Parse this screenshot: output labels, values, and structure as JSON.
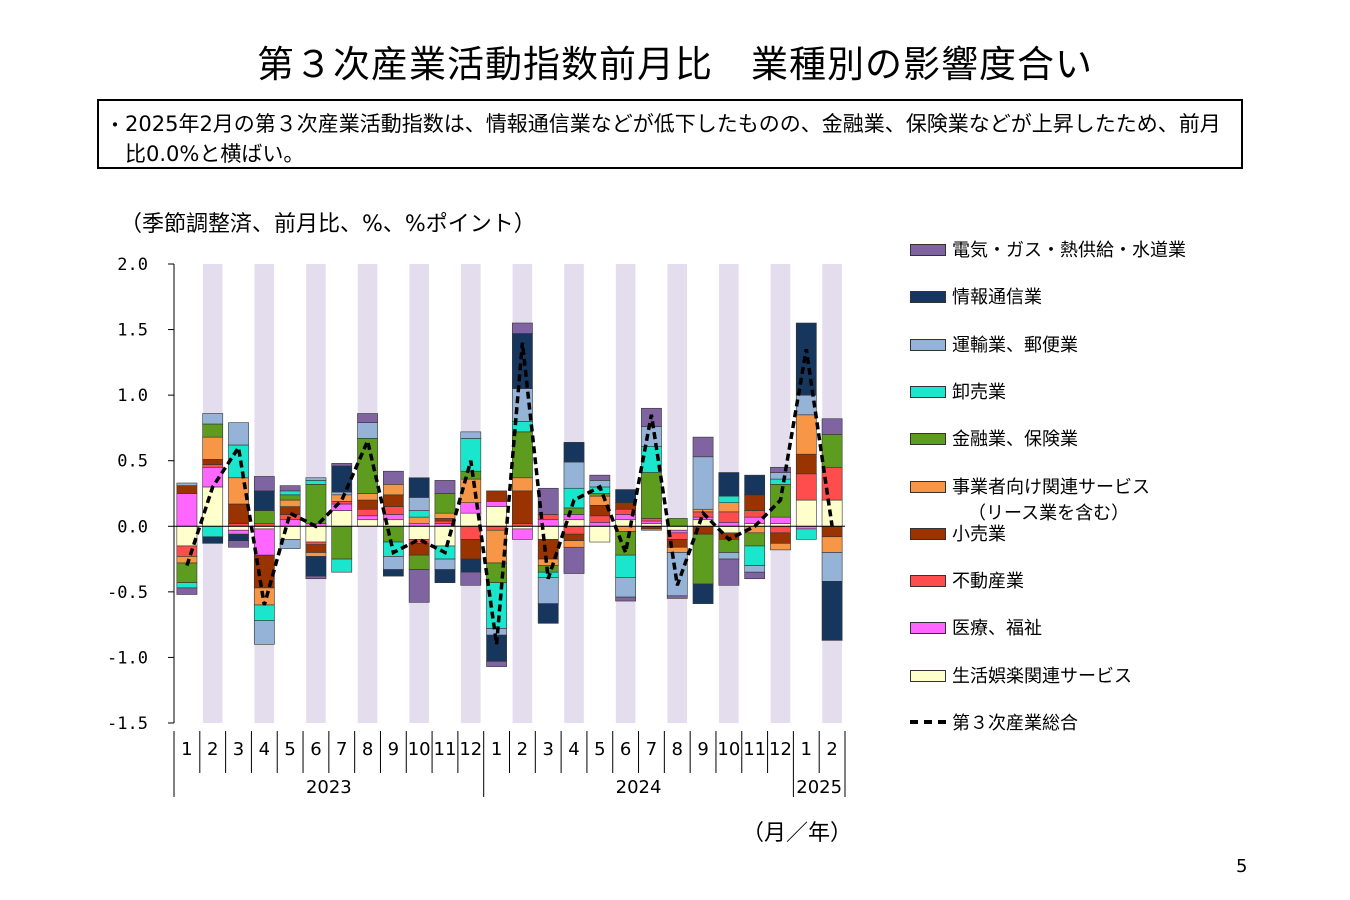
{
  "page": {
    "title": "第３次産業活動指数前月比　業種別の影響度合い",
    "summary_bullet": "・",
    "summary": "2025年2月の第３次産業活動指数は、情報通信業などが低下したものの、金融業、保険業などが上昇したため、前月比0.0%と横ばい。",
    "unit_note": "（季節調整済、前月比、%、%ポイント）",
    "x_unit": "（月／年）",
    "page_number": "5"
  },
  "chart_data": {
    "type": "bar",
    "stacked": true,
    "ylim": [
      -1.5,
      2.0
    ],
    "y_ticks": [
      "2.0",
      "1.5",
      "1.0",
      "0.5",
      "0.0",
      "-0.5",
      "-1.0",
      "-1.5"
    ],
    "y_tick_values": [
      2.0,
      1.5,
      1.0,
      0.5,
      0.0,
      -0.5,
      -1.0,
      -1.5
    ],
    "categories": [
      "1",
      "2",
      "3",
      "4",
      "5",
      "6",
      "7",
      "8",
      "9",
      "10",
      "11",
      "12",
      "1",
      "2",
      "3",
      "4",
      "5",
      "6",
      "7",
      "8",
      "9",
      "10",
      "11",
      "12",
      "1",
      "2"
    ],
    "year_labels": [
      {
        "label": "2023",
        "start": 0,
        "end": 11
      },
      {
        "label": "2024",
        "start": 12,
        "end": 23
      },
      {
        "label": "2025",
        "start": 24,
        "end": 25
      }
    ],
    "shaded_background": "even-months",
    "series": [
      {
        "name": "生活娯楽関連サービス",
        "color": "#ffffcc",
        "values": [
          -0.15,
          0.3,
          -0.03,
          -0.02,
          -0.1,
          -0.12,
          0.12,
          0.05,
          0.05,
          -0.1,
          -0.15,
          0.1,
          0.15,
          -0.02,
          -0.1,
          0.05,
          -0.12,
          0.05,
          0.02,
          -0.03,
          0.05,
          -0.05,
          0.02,
          0.02,
          0.2,
          0.2
        ]
      },
      {
        "name": "医療、福祉",
        "color": "#ff66ff",
        "values": [
          0.25,
          0.15,
          -0.03,
          -0.2,
          0.05,
          0.02,
          0.05,
          0.03,
          0.04,
          0.02,
          0.02,
          0.08,
          0.04,
          -0.08,
          0.05,
          0.04,
          0.03,
          0.04,
          0.02,
          -0.02,
          0.02,
          0.03,
          0.05,
          0.05,
          -0.02,
          0.0
        ]
      },
      {
        "name": "不動産業",
        "color": "#ff4d4d",
        "values": [
          -0.08,
          0.02,
          0.02,
          0.02,
          0.04,
          -0.02,
          0.02,
          0.05,
          0.06,
          -0.03,
          0.02,
          -0.1,
          -0.03,
          0.02,
          0.04,
          -0.06,
          0.05,
          0.04,
          0.02,
          -0.05,
          0.04,
          0.08,
          0.05,
          -0.05,
          0.2,
          0.25
        ]
      },
      {
        "name": "小売業",
        "color": "#993300",
        "values": [
          0.06,
          0.04,
          0.15,
          -0.25,
          0.06,
          -0.06,
          0.0,
          0.07,
          0.09,
          -0.09,
          0.02,
          -0.15,
          0.08,
          0.25,
          -0.15,
          -0.05,
          0.08,
          0.05,
          -0.02,
          -0.06,
          -0.06,
          -0.05,
          0.12,
          -0.08,
          0.15,
          -0.08
        ]
      },
      {
        "name": "事業者向け関連サービス（リース業を含む）",
        "color": "#f79646",
        "values": [
          -0.05,
          0.17,
          0.2,
          -0.13,
          0.05,
          -0.03,
          0.05,
          0.05,
          0.08,
          0.05,
          0.04,
          0.18,
          -0.25,
          0.1,
          -0.05,
          -0.05,
          0.07,
          -0.04,
          -0.01,
          -0.04,
          0.02,
          0.07,
          -0.05,
          -0.05,
          0.3,
          -0.12
        ]
      },
      {
        "name": "金融業、保険業",
        "color": "#5e9c1f",
        "values": [
          -0.15,
          0.1,
          0.0,
          0.1,
          0.04,
          0.3,
          -0.25,
          0.42,
          -0.12,
          -0.11,
          0.15,
          0.06,
          -0.15,
          0.35,
          -0.05,
          0.05,
          0.02,
          -0.18,
          0.35,
          0.06,
          -0.38,
          -0.1,
          -0.1,
          0.25,
          0.0,
          0.25
        ]
      },
      {
        "name": "卸売業",
        "color": "#19e6cc",
        "values": [
          -0.04,
          -0.08,
          0.25,
          -0.12,
          0.03,
          0.03,
          -0.1,
          0.0,
          -0.11,
          0.05,
          -0.1,
          0.25,
          -0.35,
          0.08,
          -0.04,
          0.15,
          0.05,
          -0.17,
          0.2,
          0.0,
          0.0,
          0.05,
          -0.15,
          0.04,
          -0.08,
          0.0
        ]
      },
      {
        "name": "運輸業、郵便業",
        "color": "#95b3d7",
        "values": [
          0.02,
          0.08,
          0.17,
          -0.18,
          -0.07,
          0.02,
          0.02,
          0.12,
          -0.1,
          0.1,
          -0.08,
          0.05,
          -0.05,
          0.25,
          -0.2,
          0.2,
          0.05,
          -0.15,
          0.15,
          -0.33,
          0.4,
          -0.05,
          -0.05,
          0.05,
          0.15,
          -0.22
        ]
      },
      {
        "name": "情報通信業",
        "color": "#17365d",
        "values": [
          0.0,
          -0.05,
          -0.05,
          0.15,
          0.0,
          -0.15,
          0.2,
          0.0,
          -0.05,
          0.15,
          -0.1,
          -0.1,
          -0.2,
          0.42,
          -0.15,
          0.15,
          0.0,
          0.1,
          0.0,
          0.0,
          -0.15,
          0.18,
          0.15,
          0.0,
          0.55,
          -0.45
        ]
      },
      {
        "name": "電気・ガス・熱供給・水道業",
        "color": "#8064a2",
        "values": [
          -0.05,
          0.0,
          -0.05,
          0.11,
          0.04,
          -0.02,
          0.02,
          0.07,
          0.1,
          -0.25,
          0.1,
          -0.1,
          -0.04,
          0.08,
          0.2,
          -0.2,
          0.04,
          -0.03,
          0.14,
          -0.02,
          0.15,
          -0.2,
          -0.05,
          0.04,
          0.0,
          0.12
        ]
      }
    ],
    "line": {
      "name": "第３次産業総合",
      "color": "#000000",
      "values": [
        -0.3,
        0.3,
        0.6,
        -0.6,
        0.1,
        0.0,
        0.2,
        0.65,
        -0.2,
        -0.1,
        -0.2,
        0.5,
        -0.9,
        1.4,
        -0.4,
        0.2,
        0.3,
        -0.2,
        0.85,
        -0.45,
        0.1,
        -0.1,
        0.0,
        0.2,
        1.35,
        0.0
      ]
    },
    "legend_position": "right",
    "legend_order": [
      {
        "label": "電気・ガス・熱供給・水道業",
        "color": "#8064a2"
      },
      {
        "label": "情報通信業",
        "color": "#17365d"
      },
      {
        "label": "運輸業、郵便業",
        "color": "#95b3d7"
      },
      {
        "label": "卸売業",
        "color": "#19e6cc"
      },
      {
        "label": "金融業、保険業",
        "color": "#5e9c1f"
      },
      {
        "label": "事業者向け関連サービス",
        "sub": "（リース業を含む）",
        "color": "#f79646"
      },
      {
        "label": "小売業",
        "color": "#993300"
      },
      {
        "label": "不動産業",
        "color": "#ff4d4d"
      },
      {
        "label": "医療、福祉",
        "color": "#ff66ff"
      },
      {
        "label": "生活娯楽関連サービス",
        "color": "#ffffcc"
      },
      {
        "label": "第３次産業総合",
        "color": "#000000",
        "dashed": true
      }
    ]
  }
}
